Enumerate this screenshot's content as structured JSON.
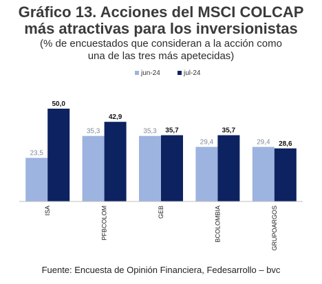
{
  "title_line1": "Gráfico 13. Acciones del MSCI COLCAP",
  "title_line2": "más atractivas para los inversionistas",
  "subtitle_line1": "(% de encuestados que consideran a la acción como",
  "subtitle_line2": "una de las tres más apetecidas)",
  "footer": "Fuente: Encuesta de Opinión Financiera, Fedesarrollo – bvc",
  "chart_data": {
    "type": "bar",
    "categories": [
      "ISA",
      "PFBCOLOM",
      "GEB",
      "BCOLOMBIA",
      "GRUPOARGOS"
    ],
    "series": [
      {
        "name": "jun-24",
        "values": [
          23.5,
          35.3,
          35.3,
          29.4,
          29.4
        ],
        "labels": [
          "23,5",
          "35,3",
          "35,3",
          "29,4",
          "29,4"
        ],
        "color": "#9db3e0"
      },
      {
        "name": "jul-24",
        "values": [
          50.0,
          42.9,
          35.7,
          35.7,
          28.6
        ],
        "labels": [
          "50,0",
          "42,9",
          "35,7",
          "35,7",
          "28,6"
        ],
        "color": "#0d2260"
      }
    ],
    "ylim": [
      0,
      60
    ],
    "grid": false,
    "legend": "top-center"
  }
}
